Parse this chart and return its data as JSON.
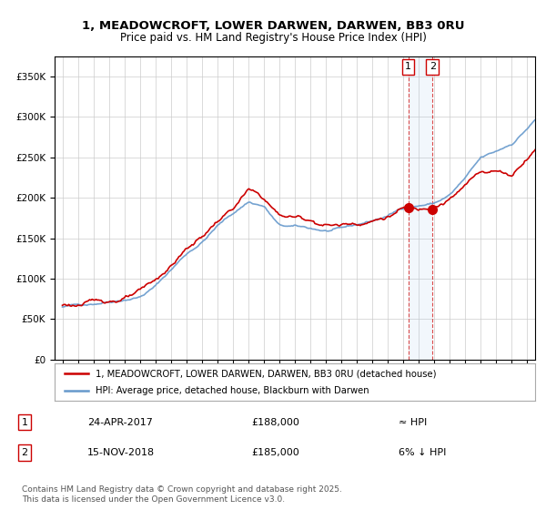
{
  "title_line1": "1, MEADOWCROFT, LOWER DARWEN, DARWEN, BB3 0RU",
  "title_line2": "Price paid vs. HM Land Registry's House Price Index (HPI)",
  "legend_line1": "1, MEADOWCROFT, LOWER DARWEN, DARWEN, BB3 0RU (detached house)",
  "legend_line2": "HPI: Average price, detached house, Blackburn with Darwen",
  "sale1_label": "1",
  "sale1_date": "24-APR-2017",
  "sale1_price": "£188,000",
  "sale1_vs": "≈ HPI",
  "sale2_label": "2",
  "sale2_date": "15-NOV-2018",
  "sale2_price": "£185,000",
  "sale2_vs": "6% ↓ HPI",
  "footer": "Contains HM Land Registry data © Crown copyright and database right 2025.\nThis data is licensed under the Open Government Licence v3.0.",
  "red_line_color": "#cc0000",
  "blue_line_color": "#6699cc",
  "background_color": "#ffffff",
  "grid_color": "#cccccc",
  "sale1_year": 2017.31,
  "sale2_year": 2018.88,
  "sale1_price_val": 188000,
  "sale2_price_val": 185000,
  "ylim_min": 0,
  "ylim_max": 375000,
  "xlim_min": 1994.5,
  "xlim_max": 2025.5,
  "hpi_anchors_t": [
    1995,
    1996,
    1997,
    1998,
    1999,
    2000,
    2001,
    2002,
    2003,
    2004,
    2005,
    2006,
    2007,
    2008,
    2009,
    2010,
    2011,
    2012,
    2013,
    2014,
    2015,
    2016,
    2017,
    2018,
    2019,
    2020,
    2021,
    2022,
    2023,
    2024,
    2025.5
  ],
  "hpi_anchors_v": [
    65000,
    67000,
    70000,
    74000,
    78000,
    82000,
    95000,
    115000,
    135000,
    150000,
    170000,
    185000,
    200000,
    195000,
    170000,
    168000,
    165000,
    162000,
    163000,
    167000,
    172000,
    178000,
    188000,
    192000,
    195000,
    205000,
    225000,
    248000,
    255000,
    265000,
    295000
  ],
  "prop_anchors_t": [
    1995,
    1996,
    1997,
    1998,
    1999,
    2000,
    2001,
    2002,
    2003,
    2004,
    2005,
    2006,
    2007,
    2008,
    2009,
    2010,
    2011,
    2012,
    2013,
    2014,
    2015,
    2016,
    2017,
    2018,
    2019,
    2020,
    2021,
    2022,
    2023,
    2024,
    2025.5
  ],
  "prop_anchors_v": [
    67000,
    68000,
    70000,
    73000,
    77000,
    82000,
    93000,
    112000,
    133000,
    148000,
    168000,
    183000,
    205000,
    193000,
    172000,
    170000,
    167000,
    163000,
    163000,
    167000,
    172000,
    178000,
    188000,
    185000,
    195000,
    205000,
    220000,
    238000,
    240000,
    235000,
    272000
  ]
}
